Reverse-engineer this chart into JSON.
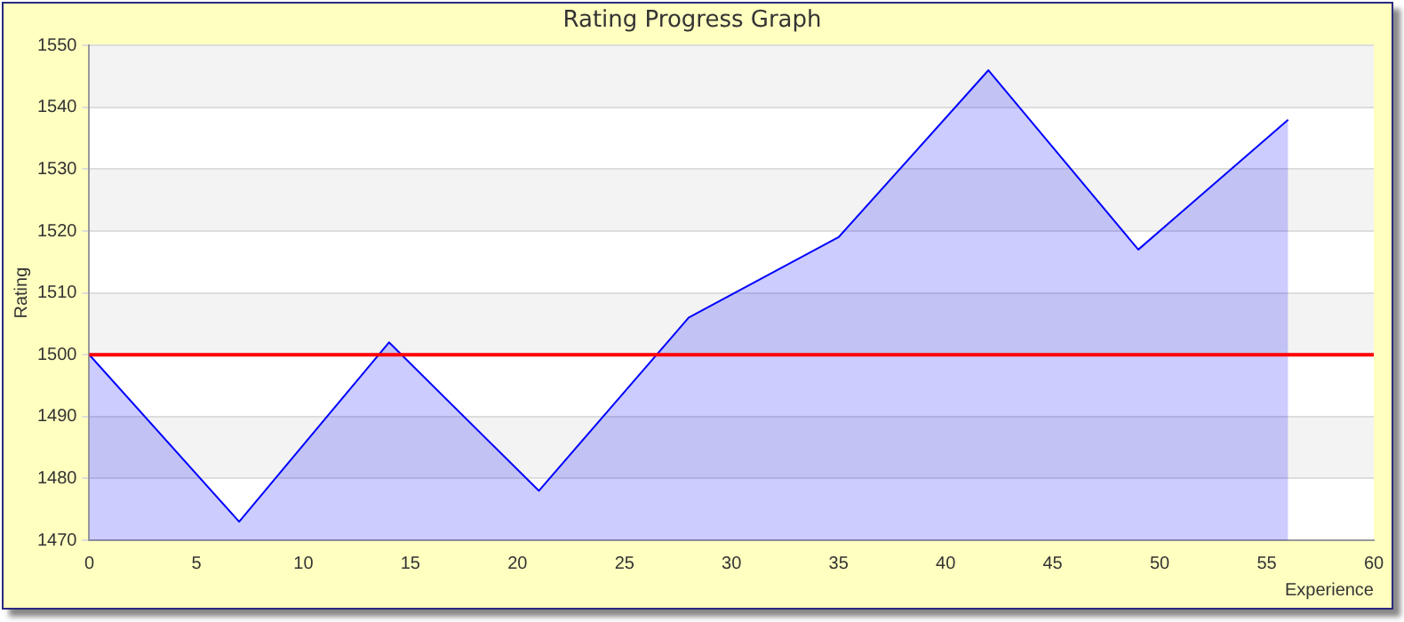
{
  "chart_data": {
    "type": "area",
    "title": "Rating Progress Graph",
    "xlabel": "Experience",
    "ylabel": "Rating",
    "x": [
      0,
      7,
      14,
      21,
      28,
      35,
      42,
      49,
      56
    ],
    "series": [
      {
        "color": "#0000ff",
        "values": [
          1500,
          1473,
          1502,
          1478,
          1506,
          1519,
          1546,
          1517,
          1538
        ]
      }
    ],
    "xlim": [
      0,
      60
    ],
    "xticks": [
      0,
      5,
      10,
      15,
      20,
      25,
      30,
      35,
      40,
      45,
      50,
      55,
      60
    ],
    "ylim": [
      1470,
      1550
    ],
    "yticks": [
      1470,
      1480,
      1490,
      1500,
      1510,
      1520,
      1530,
      1540,
      1550
    ],
    "grid": "y",
    "legend": false,
    "marker": "none",
    "ref_lines": [
      {
        "axis": "y",
        "value": 1500,
        "color": "#ff0000"
      }
    ]
  }
}
